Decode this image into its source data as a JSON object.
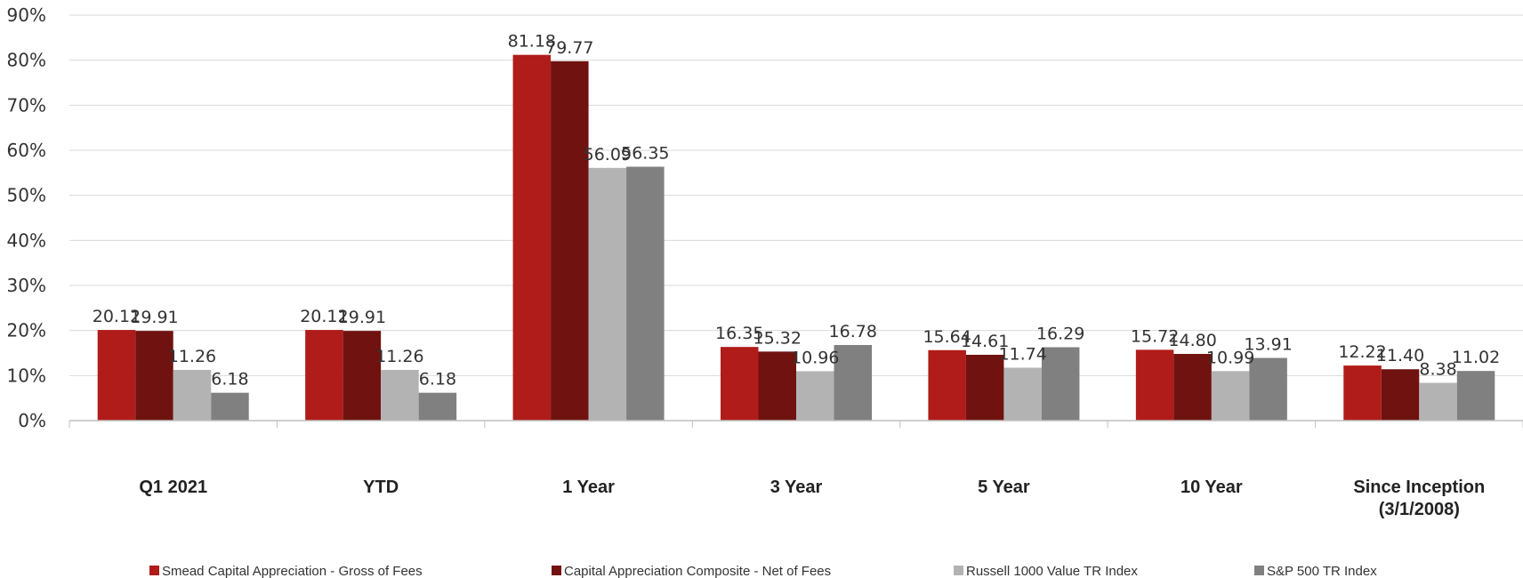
{
  "chart_data": {
    "type": "bar",
    "categories": [
      "Q1 2021",
      "YTD",
      "1 Year",
      "3 Year",
      "5 Year",
      "10 Year",
      "Since Inception\n(3/1/2008)"
    ],
    "series": [
      {
        "name": "Smead Capital Appreciation - Gross of Fees",
        "color": "#b01c19",
        "values": [
          20.12,
          20.12,
          81.18,
          16.35,
          15.64,
          15.72,
          12.22
        ],
        "labels": [
          "20.12",
          "20.12",
          "81.18",
          "16.35",
          "15.64",
          "15.72",
          "12.22"
        ]
      },
      {
        "name": "Capital Appreciation Composite - Net of Fees",
        "color": "#701210",
        "values": [
          19.91,
          19.91,
          79.77,
          15.32,
          14.61,
          14.8,
          11.4
        ],
        "labels": [
          "19.91",
          "19.91",
          "79.77",
          "15.32",
          "14.61",
          "14.80",
          "11.40"
        ]
      },
      {
        "name": "Russell 1000 Value TR Index",
        "color": "#b3b3b3",
        "values": [
          11.26,
          11.26,
          56.09,
          10.96,
          11.74,
          10.99,
          8.38
        ],
        "labels": [
          "11.26",
          "11.26",
          "56.09",
          "10.96",
          "11.74",
          "10.99",
          "8.38"
        ]
      },
      {
        "name": "S&P 500 TR Index",
        "color": "#808080",
        "values": [
          6.18,
          6.18,
          56.35,
          16.78,
          16.29,
          13.91,
          11.02
        ],
        "labels": [
          "6.18",
          "6.18",
          "56.35",
          "16.78",
          "16.29",
          "13.91",
          "11.02"
        ]
      }
    ],
    "yticks": [
      "0%",
      "10%",
      "20%",
      "30%",
      "40%",
      "50%",
      "60%",
      "70%",
      "80%",
      "90%"
    ],
    "ylim": [
      0,
      90
    ],
    "grid": true,
    "legend": "bottom",
    "title": "",
    "xlabel": "",
    "ylabel": ""
  }
}
